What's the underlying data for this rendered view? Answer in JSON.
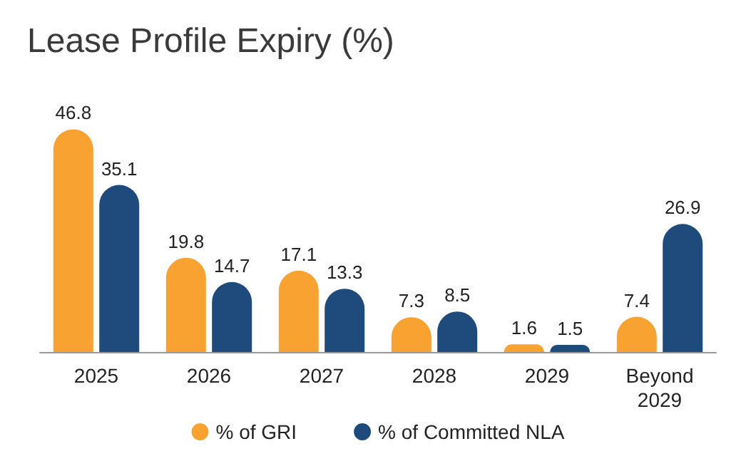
{
  "chart_data": {
    "type": "bar",
    "title": "Lease Profile Expiry (%)",
    "categories": [
      "2025",
      "2026",
      "2027",
      "2028",
      "2029",
      "Beyond 2029"
    ],
    "series": [
      {
        "name": "% of GRI",
        "color": "#f7a231",
        "values": [
          46.8,
          19.8,
          17.1,
          7.3,
          1.6,
          7.4
        ]
      },
      {
        "name": "% of Committed NLA",
        "color": "#1f4a7c",
        "values": [
          35.1,
          14.7,
          13.3,
          8.5,
          1.5,
          26.9
        ]
      }
    ],
    "data_labels": true,
    "legend": "bottom"
  }
}
